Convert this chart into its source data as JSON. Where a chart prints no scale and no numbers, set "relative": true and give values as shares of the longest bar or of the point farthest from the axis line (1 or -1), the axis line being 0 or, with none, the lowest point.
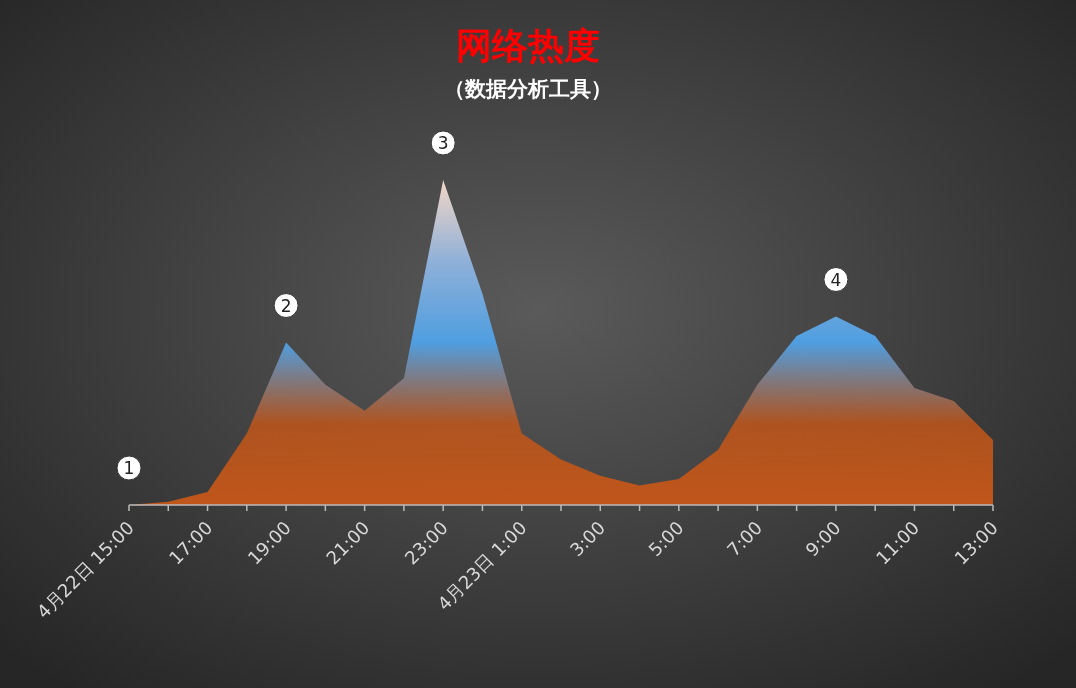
{
  "chart_data": {
    "type": "area",
    "title": "网络热度",
    "subtitle": "（数据分析工具）",
    "relative": true,
    "categories": [
      "4月22日 15:00",
      null,
      "17:00",
      null,
      "19:00",
      null,
      "21:00",
      null,
      "23:00",
      null,
      "4月23日 1:00",
      null,
      "3:00",
      null,
      "5:00",
      null,
      "7:00",
      null,
      "9:00",
      null,
      "11:00",
      null,
      "13:00"
    ],
    "series": [
      {
        "color": "#c0561a",
        "values": [
          0.0,
          0.01,
          0.04,
          0.22,
          0.5,
          0.37,
          0.29,
          0.39,
          1,
          0.65,
          0.22,
          0.14,
          0.09,
          0.06,
          0.08,
          0.17,
          0.37,
          0.52,
          0.58,
          0.52,
          0.36,
          0.32,
          0.2
        ]
      }
    ],
    "annotations": [
      {
        "text": "1",
        "x": "4月22日 15:00",
        "y": 0.0
      },
      {
        "text": "2",
        "x": "19:00",
        "y": 0.5
      },
      {
        "text": "3",
        "x": "23:00",
        "y": 1
      },
      {
        "text": "4",
        "x": "9:00",
        "y": 0.58
      }
    ],
    "grid": false
  }
}
